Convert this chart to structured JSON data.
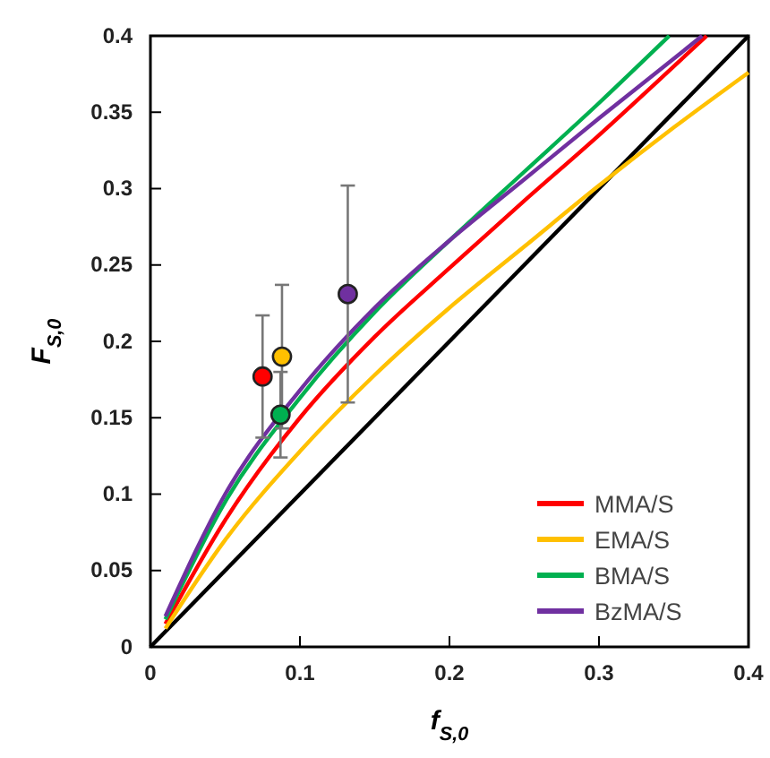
{
  "chart_data": {
    "type": "line",
    "xlabel": "f$_{S,0}$",
    "ylabel": "F$_{S,0}$",
    "xlim": [
      0,
      0.4
    ],
    "ylim": [
      0,
      0.4
    ],
    "xticks": [
      0,
      0.1,
      0.2,
      0.3,
      0.4
    ],
    "yticks": [
      0,
      0.05,
      0.1,
      0.15,
      0.2,
      0.25,
      0.3,
      0.35,
      0.4
    ],
    "grid": false,
    "legend": "bottom right",
    "marker": "none",
    "line_style": "solid",
    "series": [
      {
        "color": "#000000",
        "x": [
          0,
          0.4
        ],
        "values": [
          0,
          0.4
        ]
      },
      {
        "name": "MMA/S",
        "color": "#ff0000",
        "x": [
          0.01,
          0.05,
          0.1,
          0.15,
          0.2,
          0.25,
          0.3,
          0.35,
          0.372
        ],
        "values": [
          0.015,
          0.083,
          0.15,
          0.203,
          0.248,
          0.292,
          0.335,
          0.38,
          0.4
        ]
      },
      {
        "name": "EMA/S",
        "color": "#ffc000",
        "x": [
          0.01,
          0.05,
          0.1,
          0.15,
          0.2,
          0.25,
          0.3,
          0.35,
          0.4
        ],
        "values": [
          0.012,
          0.07,
          0.128,
          0.178,
          0.222,
          0.262,
          0.302,
          0.34,
          0.376
        ]
      },
      {
        "name": "BMA/S",
        "color": "#00b050",
        "x": [
          0.01,
          0.05,
          0.1,
          0.15,
          0.2,
          0.25,
          0.3,
          0.347
        ],
        "values": [
          0.018,
          0.095,
          0.163,
          0.219,
          0.266,
          0.311,
          0.356,
          0.4
        ]
      },
      {
        "name": "BzMA/S",
        "color": "#7030a0",
        "x": [
          0.01,
          0.05,
          0.1,
          0.15,
          0.2,
          0.25,
          0.3,
          0.35,
          0.369
        ],
        "values": [
          0.02,
          0.1,
          0.168,
          0.222,
          0.266,
          0.306,
          0.346,
          0.385,
          0.4
        ]
      },
      {
        "type": "scatter",
        "marker": "circle",
        "color": "#ff0000",
        "x": [
          0.075
        ],
        "values": [
          0.177
        ],
        "errors": [
          0.04
        ]
      },
      {
        "type": "scatter",
        "marker": "circle",
        "color": "#ffc000",
        "x": [
          0.088
        ],
        "values": [
          0.19
        ],
        "errors": [
          0.047
        ]
      },
      {
        "type": "scatter",
        "marker": "circle",
        "color": "#00b050",
        "x": [
          0.087
        ],
        "values": [
          0.152
        ],
        "errors": [
          0.028
        ]
      },
      {
        "type": "scatter",
        "marker": "circle",
        "color": "#7030a0",
        "x": [
          0.132
        ],
        "values": [
          0.231
        ],
        "errors": [
          0.071
        ]
      }
    ]
  }
}
